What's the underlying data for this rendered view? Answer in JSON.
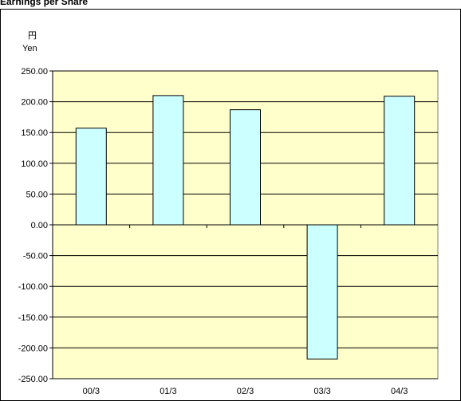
{
  "title": "Earnings per Share",
  "chart_data": {
    "type": "bar",
    "title": "Earnings per Share",
    "unit_jp": "円",
    "unit_en": "Yen",
    "categories": [
      "00/3",
      "01/3",
      "02/3",
      "03/3",
      "04/3"
    ],
    "values": [
      157,
      210,
      187,
      -218,
      209
    ],
    "ylim": [
      -250,
      250
    ],
    "yticks": [
      250,
      200,
      150,
      100,
      50,
      0,
      -50,
      -100,
      -150,
      -200,
      -250
    ],
    "ytick_labels": [
      "250.00",
      "200.00",
      "150.00",
      "100.00",
      "50.00",
      "0.00",
      "-50.00",
      "-100.00",
      "-150.00",
      "-200.00",
      "-250.00"
    ],
    "grid": true,
    "colors": {
      "plot_bg": "#ffffcc",
      "bar_fill": "#ccffff",
      "bar_stroke": "#000000"
    }
  }
}
